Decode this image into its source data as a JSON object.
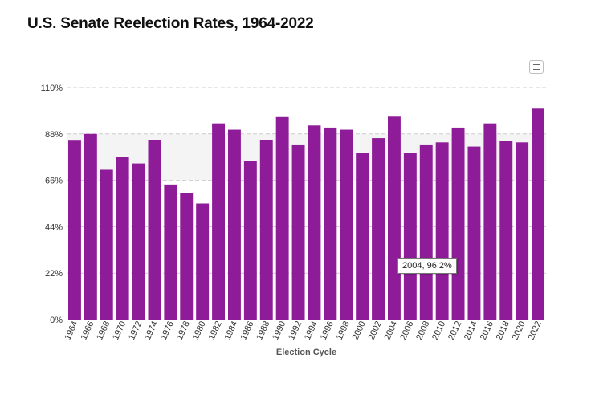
{
  "page": {
    "title": "U.S. Senate Reelection Rates, 1964-2022"
  },
  "menu": {
    "icon": "hamburger-menu-icon"
  },
  "tooltip": {
    "text": "2004, 96.2%"
  },
  "colors": {
    "bar": "#8e1c98",
    "grid": "#cccccc",
    "band": "#f4f4f4",
    "axis": "#555555"
  },
  "chart_data": {
    "type": "bar",
    "title": "",
    "xlabel": "Election Cycle",
    "ylabel": "",
    "ylim": [
      0,
      110
    ],
    "yticks": [
      0,
      22,
      44,
      66,
      88,
      110
    ],
    "ytick_labels": [
      "0%",
      "22%",
      "44%",
      "66%",
      "88%",
      "110%"
    ],
    "grid": true,
    "band": [
      66,
      88
    ],
    "categories": [
      "1964",
      "1966",
      "1968",
      "1970",
      "1972",
      "1974",
      "1976",
      "1978",
      "1980",
      "1982",
      "1984",
      "1986",
      "1988",
      "1990",
      "1992",
      "1994",
      "1996",
      "1998",
      "2000",
      "2002",
      "2004",
      "2006",
      "2008",
      "2010",
      "2012",
      "2014",
      "2016",
      "2018",
      "2020",
      "2022"
    ],
    "values": [
      84.8,
      88.0,
      71.0,
      77.0,
      74.0,
      85.0,
      64.0,
      60.0,
      55.0,
      93.0,
      90.0,
      75.0,
      85.0,
      96.0,
      83.0,
      92.0,
      91.0,
      90.0,
      79.0,
      86.0,
      96.2,
      79.0,
      83.0,
      84.0,
      91.0,
      82.0,
      93.0,
      84.5,
      84.0,
      100.0
    ]
  }
}
